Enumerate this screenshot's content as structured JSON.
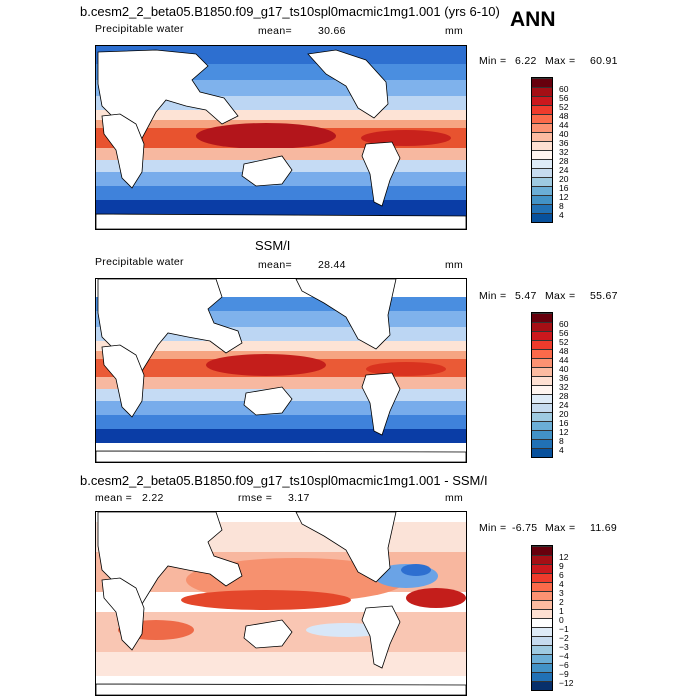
{
  "figure": {
    "season": "ANN",
    "panels": [
      {
        "title": "b.cesm2_2_beta05.B1850.f09_g17_ts10spl0macmic1mg1.001 (yrs 6-10)",
        "variable": "Precipitable water",
        "mean_label": "mean=",
        "mean_value": "30.66",
        "units": "mm",
        "min_label": "Min =",
        "min_value": "6.22",
        "max_label": "Max =",
        "max_value": "60.91",
        "colorbar_ticks": [
          "60",
          "56",
          "52",
          "48",
          "44",
          "40",
          "36",
          "32",
          "28",
          "24",
          "20",
          "16",
          "12",
          "8",
          "4"
        ],
        "colors": [
          "#67000d",
          "#a50f15",
          "#cb181d",
          "#ef3b2c",
          "#fb6a4a",
          "#fc9272",
          "#fcbba1",
          "#fee0d2",
          "#fff5f0",
          "#deebf7",
          "#c6dbef",
          "#9ecae1",
          "#6baed6",
          "#4292c6",
          "#2171b5",
          "#08519c"
        ]
      },
      {
        "title": "SSM/I",
        "variable": "Precipitable water",
        "mean_label": "mean=",
        "mean_value": "28.44",
        "units": "mm",
        "min_label": "Min =",
        "min_value": "5.47",
        "max_label": "Max =",
        "max_value": "55.67",
        "colorbar_ticks": [
          "60",
          "56",
          "52",
          "48",
          "44",
          "40",
          "36",
          "32",
          "28",
          "24",
          "20",
          "16",
          "12",
          "8",
          "4"
        ],
        "colors": [
          "#67000d",
          "#a50f15",
          "#cb181d",
          "#ef3b2c",
          "#fb6a4a",
          "#fc9272",
          "#fcbba1",
          "#fee0d2",
          "#fff5f0",
          "#deebf7",
          "#c6dbef",
          "#9ecae1",
          "#6baed6",
          "#4292c6",
          "#2171b5",
          "#08519c"
        ]
      },
      {
        "title": "b.cesm2_2_beta05.B1850.f09_g17_ts10spl0macmic1mg1.001 - SSM/I",
        "mean_label": "mean =",
        "mean_value": "2.22",
        "rmse_label": "rmse =",
        "rmse_value": "3.17",
        "units": "mm",
        "min_label": "Min =",
        "min_value": "-6.75",
        "max_label": "Max =",
        "max_value": "11.69",
        "colorbar_ticks": [
          "12",
          "9",
          "6",
          "4",
          "3",
          "2",
          "1",
          "0",
          "−1",
          "−2",
          "−3",
          "−4",
          "−6",
          "−9",
          "−12"
        ],
        "colors": [
          "#67000d",
          "#a50f15",
          "#cb181d",
          "#ef3b2c",
          "#fb6a4a",
          "#fc9272",
          "#fcbba1",
          "#fee0d2",
          "#ffffff",
          "#deebf7",
          "#c6dbef",
          "#9ecae1",
          "#6baed6",
          "#4292c6",
          "#2171b5",
          "#08306b"
        ]
      }
    ]
  }
}
